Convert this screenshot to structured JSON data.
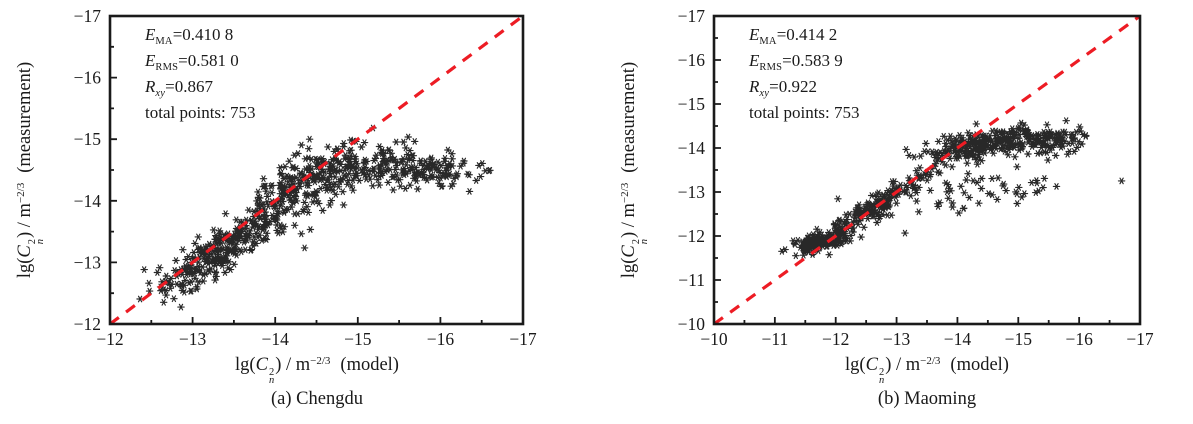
{
  "figure": {
    "background": "#ffffff",
    "text_color": "#1a1a1a",
    "accent_red": "#ed1c24",
    "marker_color": "#161616"
  },
  "axis_label": {
    "prefix": "lg(",
    "var": "C",
    "sub": "n",
    "sup": "2",
    "mid": ") / m",
    "exp": "−2/3"
  },
  "chart_data": [
    {
      "type": "scatter",
      "panel": "a",
      "caption": "(a) Chengdu",
      "xlabel": "lg(Cn^2) / m^(-2/3)  (model)",
      "ylabel": "lg(Cn^2) / m^(-2/3)  (measurement)",
      "xlabel_suffix": "(model)",
      "ylabel_suffix": "(measurement)",
      "xlim": [
        -12,
        -17
      ],
      "ylim": [
        -12,
        -17
      ],
      "x_ticks": [
        "−12",
        "−13",
        "−14",
        "−15",
        "−16",
        "−17"
      ],
      "y_ticks": [
        "−12",
        "−13",
        "−14",
        "−15",
        "−16",
        "−17"
      ],
      "stats": [
        {
          "var": "E",
          "sub": "MA",
          "value": "=0.410 8"
        },
        {
          "var": "E",
          "sub": "RMS",
          "value": "=0.581 0"
        },
        {
          "var": "R",
          "sub": "xy",
          "value": "=0.867"
        },
        {
          "label": "total points: 753"
        }
      ],
      "total_points": 753,
      "identity_line": {
        "from": [
          -12,
          -12
        ],
        "to": [
          -17,
          -17
        ],
        "style": "dashed",
        "color": "#ed1c24"
      },
      "marker": "asterisk",
      "seed": 42,
      "clusters": [
        {
          "cx": -13.2,
          "cy": -13.05,
          "sx": 0.3,
          "sy": 0.18,
          "n": 210,
          "corr": 0.75
        },
        {
          "cx": -13.85,
          "cy": -13.65,
          "sx": 0.25,
          "sy": 0.18,
          "n": 100,
          "corr": 0.8
        },
        {
          "cx": -14.4,
          "cy": -14.35,
          "sx": 0.32,
          "sy": 0.22,
          "n": 180,
          "corr": 0.5
        },
        {
          "cx": -15.15,
          "cy": -14.55,
          "sx": 0.35,
          "sy": 0.2,
          "n": 140,
          "corr": 0.1
        },
        {
          "cx": -15.85,
          "cy": -14.5,
          "sx": 0.28,
          "sy": 0.16,
          "n": 105,
          "corr": 0.0
        },
        {
          "cx": -16.55,
          "cy": -14.5,
          "sx": 0.1,
          "sy": 0.08,
          "n": 6,
          "corr": 0.0
        },
        {
          "cx": -14.15,
          "cy": -13.55,
          "sx": 0.35,
          "sy": 0.2,
          "n": 12,
          "corr": 0.3
        }
      ]
    },
    {
      "type": "scatter",
      "panel": "b",
      "caption": "(b) Maoming",
      "xlabel": "lg(Cn^2) / m^(-2/3)  (model)",
      "ylabel": "lg(Cn^2) / m^(-2/3)  (measurement)",
      "xlabel_suffix": "(model)",
      "ylabel_suffix": "(measurement)",
      "xlim": [
        -10,
        -17
      ],
      "ylim": [
        -10,
        -17
      ],
      "x_ticks": [
        "−10",
        "−11",
        "−12",
        "−13",
        "−14",
        "−15",
        "−16",
        "−17"
      ],
      "y_ticks": [
        "−10",
        "−11",
        "−12",
        "−13",
        "−14",
        "−15",
        "−16",
        "−17"
      ],
      "stats": [
        {
          "var": "E",
          "sub": "MA",
          "value": "=0.414 2"
        },
        {
          "var": "E",
          "sub": "RMS",
          "value": "=0.583 9"
        },
        {
          "var": "R",
          "sub": "xy",
          "value": "=0.922"
        },
        {
          "label": "total points: 753"
        }
      ],
      "total_points": 753,
      "identity_line": {
        "from": [
          -10,
          -10
        ],
        "to": [
          -17,
          -17
        ],
        "style": "dashed",
        "color": "#ed1c24"
      },
      "marker": "asterisk",
      "seed": 7,
      "clusters": [
        {
          "cx": -11.72,
          "cy": -11.85,
          "sx": 0.2,
          "sy": 0.1,
          "n": 160,
          "corr": 0.3
        },
        {
          "cx": -12.35,
          "cy": -12.4,
          "sx": 0.3,
          "sy": 0.15,
          "n": 110,
          "corr": 0.85
        },
        {
          "cx": -13.05,
          "cy": -13.0,
          "sx": 0.3,
          "sy": 0.15,
          "n": 85,
          "corr": 0.85
        },
        {
          "cx": -14.35,
          "cy": -14.05,
          "sx": 0.4,
          "sy": 0.16,
          "n": 210,
          "corr": 0.25
        },
        {
          "cx": -15.35,
          "cy": -14.15,
          "sx": 0.35,
          "sy": 0.15,
          "n": 125,
          "corr": 0.0
        },
        {
          "cx": -14.4,
          "cy": -13.0,
          "sx": 0.7,
          "sy": 0.22,
          "n": 55,
          "corr": 0.15
        },
        {
          "cx": -16.05,
          "cy": -14.25,
          "sx": 0.12,
          "sy": 0.18,
          "n": 8,
          "corr": 0.0
        }
      ]
    }
  ]
}
